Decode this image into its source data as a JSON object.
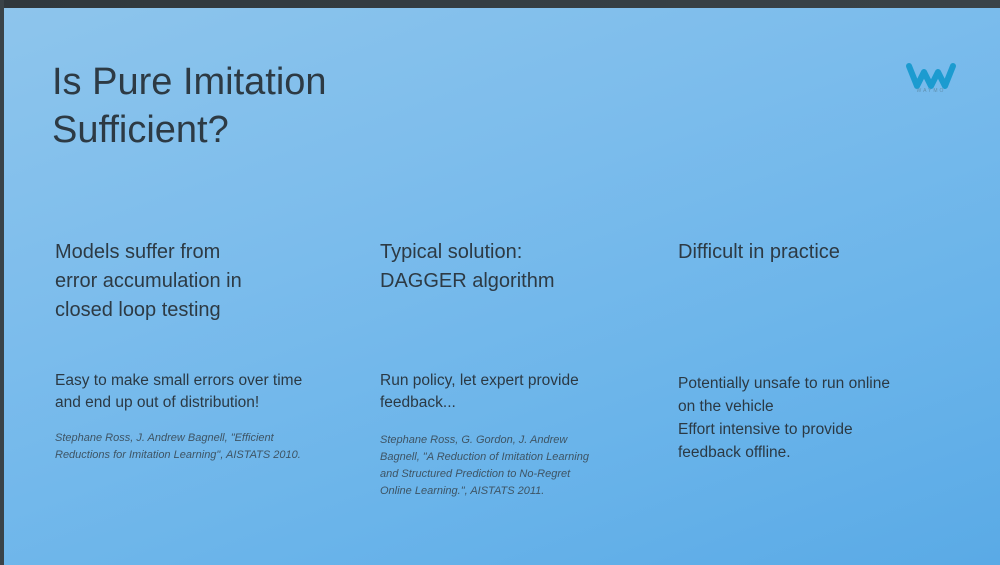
{
  "slide": {
    "title": "Is Pure Imitation\nSufficient?",
    "logo": {
      "icon": "waymo-logo-icon",
      "text": "WAYMO",
      "color": "#1c9bd0"
    },
    "columns": [
      {
        "heading": "Models suffer from\nerror accumulation in\nclosed loop testing",
        "body": "Easy to make small errors over time\nand end up out of distribution!",
        "citation": "Stephane Ross, J. Andrew Bagnell, \"Efficient\nReductions for Imitation Learning\", AISTATS 2010."
      },
      {
        "heading": "Typical solution:\nDAGGER algorithm",
        "body": "Run policy, let expert provide\nfeedback...",
        "citation": "Stephane Ross, G. Gordon, J. Andrew\nBagnell, \"A Reduction of Imitation Learning\nand Structured Prediction to No-Regret\nOnline Learning.\", AISTATS 2011."
      },
      {
        "heading": "Difficult in practice",
        "body": "Potentially unsafe to run online\non the vehicle\nEffort intensive to provide\nfeedback offline."
      }
    ]
  }
}
